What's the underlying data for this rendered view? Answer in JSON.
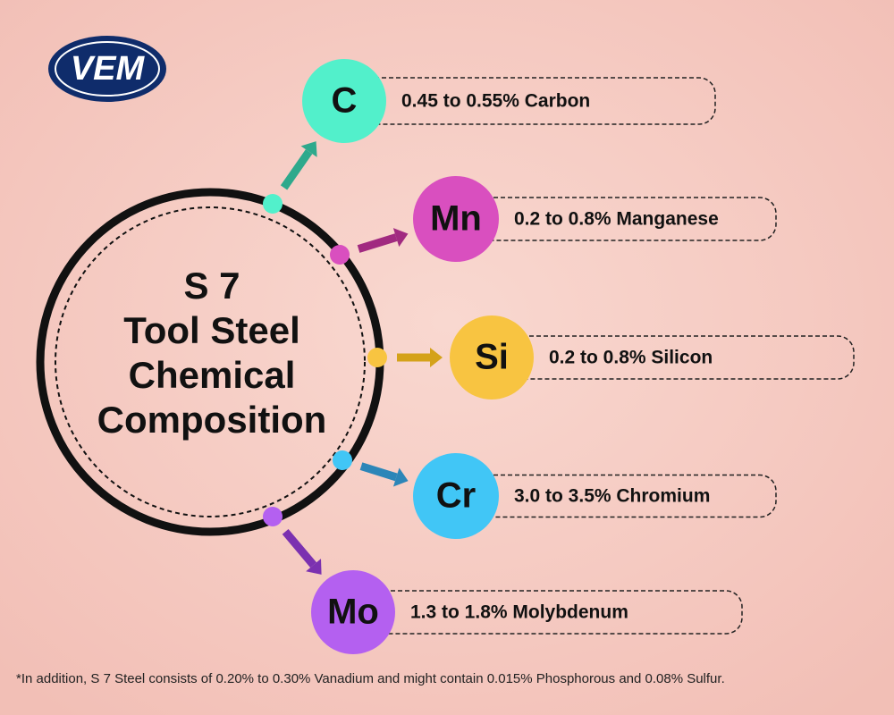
{
  "logo": "VEM",
  "title_lines": [
    "S 7",
    "Tool Steel",
    "Chemical",
    "Composition"
  ],
  "elements": [
    {
      "symbol": "C",
      "label": "0.45 to 0.55% Carbon",
      "color": "#52f0cb",
      "arrow_color": "#2ea98c"
    },
    {
      "symbol": "Mn",
      "label": "0.2 to 0.8% Manganese",
      "color": "#d94fbf",
      "arrow_color": "#a12a80"
    },
    {
      "symbol": "Si",
      "label": "0.2 to 0.8% Silicon",
      "color": "#f8c441",
      "arrow_color": "#d4a21a"
    },
    {
      "symbol": "Cr",
      "label": "3.0 to 3.5% Chromium",
      "color": "#41c6f6",
      "arrow_color": "#2c86b8"
    },
    {
      "symbol": "Mo",
      "label": "1.3 to 1.8% Molybdenum",
      "color": "#b460f0",
      "arrow_color": "#7b31b0"
    }
  ],
  "footnote": "*In addition, S 7 Steel consists of 0.20% to 0.30% Vanadium and might contain 0.015% Phosphorous and 0.08% Sulfur."
}
